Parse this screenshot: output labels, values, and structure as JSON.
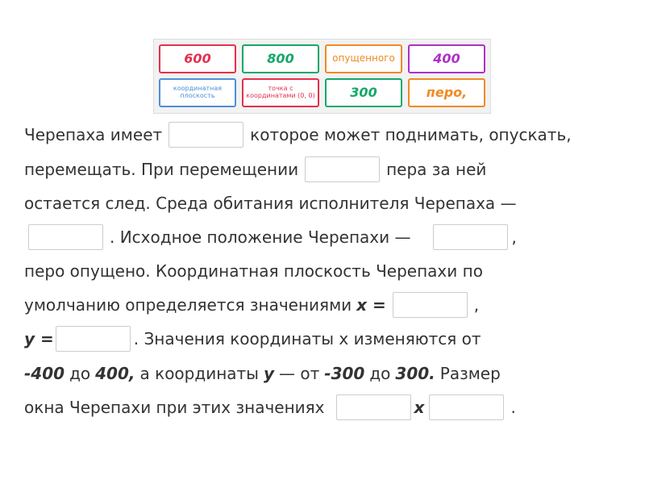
{
  "word_bank": {
    "tiles": [
      {
        "label": "600",
        "color": "#e5304d"
      },
      {
        "label": "800",
        "color": "#14a86a"
      },
      {
        "label": "опущенного",
        "color": "#f08a24"
      },
      {
        "label": "400",
        "color": "#b02fc6"
      },
      {
        "label": "координатная плоскость",
        "color": "#4f8fd6"
      },
      {
        "label": "точка с координатами (0, 0)",
        "color": "#e5304d"
      },
      {
        "label": "300",
        "color": "#14a86a"
      },
      {
        "label": "перо,",
        "color": "#f08a24"
      }
    ]
  },
  "text": {
    "lines": [
      [
        "Черепаха имеет",
        "которое может поднимать, опускать,"
      ],
      [
        "перемещать. При перемещении",
        "пера за ней"
      ],
      [
        "остается след. Среда обитания исполнителя Черепаха —"
      ],
      [
        ". Исходное положение Черепахи —",
        ","
      ],
      [
        "перо опущено. Координатная плоскость Черепахи по"
      ],
      [
        "умолчанию определяется значениями",
        "x =",
        ","
      ],
      [
        "y =",
        ". Значения координаты x изменяются от"
      ],
      [
        "-400",
        "до",
        "400,",
        "а координаты",
        "y",
        "— от",
        "-300",
        "до",
        "300.",
        "Размер"
      ],
      [
        "окна Черепахи при этих значениях",
        "x",
        "."
      ]
    ]
  }
}
